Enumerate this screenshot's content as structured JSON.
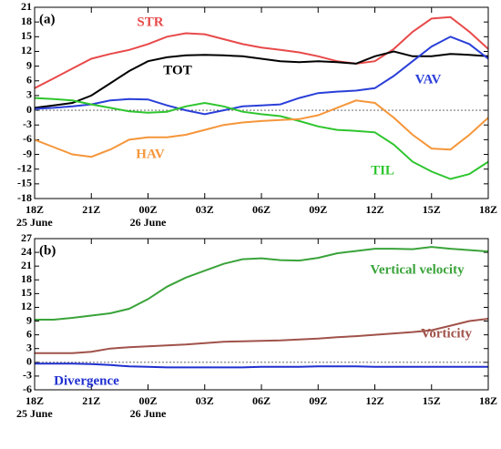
{
  "chart_data": [
    {
      "type": "line",
      "title": "(a)",
      "x": [
        0,
        1,
        2,
        3,
        4,
        5,
        6,
        7,
        8,
        9,
        10,
        11,
        12,
        13,
        14,
        15,
        16,
        17,
        18,
        19,
        20,
        21,
        22,
        23,
        24
      ],
      "xlim": [
        0,
        24
      ],
      "xticks": [
        {
          "value": 0,
          "label": "18Z"
        },
        {
          "value": 3,
          "label": "21Z"
        },
        {
          "value": 6,
          "label": "00Z"
        },
        {
          "value": 9,
          "label": "03Z"
        },
        {
          "value": 12,
          "label": "06Z"
        },
        {
          "value": 15,
          "label": "09Z"
        },
        {
          "value": 18,
          "label": "12Z"
        },
        {
          "value": 21,
          "label": "15Z"
        },
        {
          "value": 24,
          "label": "18Z"
        }
      ],
      "annotations": [
        {
          "text": "25 June",
          "x": 0
        },
        {
          "text": "26 June",
          "x": 6
        }
      ],
      "ylim": [
        -18,
        21
      ],
      "yticks": [
        -18,
        -15,
        -12,
        -9,
        -6,
        -3,
        0,
        3,
        6,
        9,
        12,
        15,
        18,
        21
      ],
      "series": [
        {
          "name": "STR",
          "color": "#e84a4a",
          "values": [
            4.5,
            6.5,
            8.5,
            10.5,
            11.5,
            12.3,
            13.5,
            15,
            15.7,
            15.5,
            14.5,
            13.5,
            12.8,
            12.3,
            11.8,
            11,
            10,
            9.5,
            10,
            12.5,
            16,
            18.7,
            19,
            16,
            12.5
          ]
        },
        {
          "name": "TOT",
          "color": "#000000",
          "values": [
            0.5,
            1,
            1.5,
            3,
            5.5,
            8,
            10,
            10.8,
            11.2,
            11.3,
            11.2,
            11,
            10.5,
            10,
            9.8,
            10,
            9.8,
            9.5,
            11,
            12,
            11,
            11,
            11.5,
            11.3,
            11
          ]
        },
        {
          "name": "VAV",
          "color": "#2a3fd8",
          "values": [
            0.3,
            0.5,
            0.8,
            1.2,
            2,
            2.3,
            2.2,
            1,
            0,
            -0.8,
            0,
            0.8,
            1,
            1.2,
            2.5,
            3.5,
            3.8,
            4,
            4.5,
            7,
            10,
            13,
            15,
            13.5,
            10.5
          ]
        },
        {
          "name": "TIL",
          "color": "#2ec52e",
          "values": [
            2.5,
            2.3,
            2,
            1.2,
            0.5,
            -0.2,
            -0.5,
            -0.3,
            0.8,
            1.5,
            0.8,
            -0.3,
            -0.8,
            -1.2,
            -2.2,
            -3.3,
            -4,
            -4.2,
            -4.5,
            -7,
            -10.5,
            -12.5,
            -14,
            -13,
            -10.5
          ]
        },
        {
          "name": "HAV",
          "color": "#f5963a",
          "values": [
            -6,
            -7.5,
            -9,
            -9.5,
            -8,
            -6,
            -5.5,
            -5.5,
            -5,
            -4,
            -3,
            -2.5,
            -2.2,
            -2,
            -1.8,
            -1,
            0.5,
            2,
            1.5,
            -1.5,
            -5,
            -7.8,
            -8,
            -5,
            -1.5
          ]
        }
      ]
    },
    {
      "type": "line",
      "title": "(b)",
      "x": [
        0,
        1,
        2,
        3,
        4,
        5,
        6,
        7,
        8,
        9,
        10,
        11,
        12,
        13,
        14,
        15,
        16,
        17,
        18,
        19,
        20,
        21,
        22,
        23,
        24
      ],
      "xlim": [
        0,
        24
      ],
      "xticks": [
        {
          "value": 0,
          "label": "18Z"
        },
        {
          "value": 3,
          "label": "21Z"
        },
        {
          "value": 6,
          "label": "00Z"
        },
        {
          "value": 9,
          "label": "03Z"
        },
        {
          "value": 12,
          "label": "06Z"
        },
        {
          "value": 15,
          "label": "09Z"
        },
        {
          "value": 18,
          "label": "12Z"
        },
        {
          "value": 21,
          "label": "15Z"
        },
        {
          "value": 24,
          "label": "18Z"
        }
      ],
      "annotations": [
        {
          "text": "25 June",
          "x": 0
        },
        {
          "text": "26 June",
          "x": 6
        }
      ],
      "ylim": [
        -6,
        27
      ],
      "yticks": [
        -6,
        -3,
        0,
        3,
        6,
        9,
        12,
        15,
        18,
        21,
        24,
        27
      ],
      "series": [
        {
          "name": "Vertical velocity",
          "color": "#3aa33a",
          "values": [
            9.3,
            9.3,
            9.7,
            10.2,
            10.7,
            11.7,
            13.8,
            16.5,
            18.5,
            20,
            21.5,
            22.5,
            22.7,
            22.3,
            22.2,
            22.8,
            23.8,
            24.3,
            24.8,
            24.8,
            24.7,
            25.2,
            24.8,
            24.5,
            24.2
          ]
        },
        {
          "name": "Vorticity",
          "color": "#a0524a",
          "values": [
            2,
            2,
            2,
            2.3,
            3,
            3.3,
            3.5,
            3.7,
            3.9,
            4.2,
            4.5,
            4.6,
            4.7,
            4.8,
            5,
            5.2,
            5.5,
            5.7,
            6,
            6.3,
            6.6,
            7,
            8,
            9,
            9.5
          ]
        },
        {
          "name": "Divergence",
          "color": "#2030d0",
          "values": [
            -0.3,
            -0.3,
            -0.3,
            -0.4,
            -0.6,
            -0.9,
            -1,
            -1.1,
            -1.1,
            -1.1,
            -1.1,
            -1.1,
            -1,
            -1,
            -1,
            -0.9,
            -0.9,
            -0.9,
            -1,
            -1,
            -1,
            -1,
            -1,
            -1,
            -1
          ]
        }
      ]
    }
  ]
}
